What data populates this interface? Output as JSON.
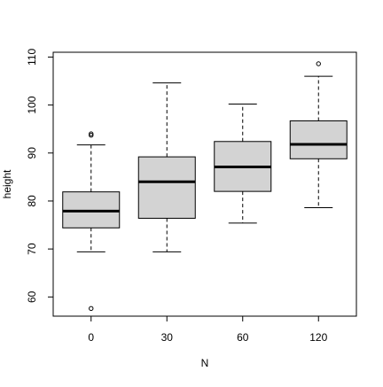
{
  "chart_data": {
    "type": "box",
    "title": "",
    "xlabel": "N",
    "ylabel": "height",
    "categories": [
      "0",
      "30",
      "60",
      "120"
    ],
    "y_ticks": [
      "60",
      "70",
      "80",
      "90",
      "100",
      "110"
    ],
    "ylim": [
      56,
      111
    ],
    "grid": false,
    "legend": "none",
    "box_fill": "#d3d3d3",
    "stroke": "#000000",
    "boxes": [
      {
        "category": "0",
        "whisker_low": 69.4,
        "q1": 74.4,
        "median": 77.9,
        "q3": 81.9,
        "whisker_high": 91.7,
        "outliers": [
          93.7,
          94.0,
          57.6
        ]
      },
      {
        "category": "30",
        "whisker_low": 69.4,
        "q1": 76.4,
        "median": 84.0,
        "q3": 89.2,
        "whisker_high": 104.6,
        "outliers": []
      },
      {
        "category": "60",
        "whisker_low": 75.4,
        "q1": 82.0,
        "median": 87.1,
        "q3": 92.4,
        "whisker_high": 100.2,
        "outliers": []
      },
      {
        "category": "120",
        "whisker_low": 78.6,
        "q1": 88.8,
        "median": 91.8,
        "q3": 96.7,
        "whisker_high": 106.0,
        "outliers": [
          108.6
        ]
      }
    ]
  }
}
